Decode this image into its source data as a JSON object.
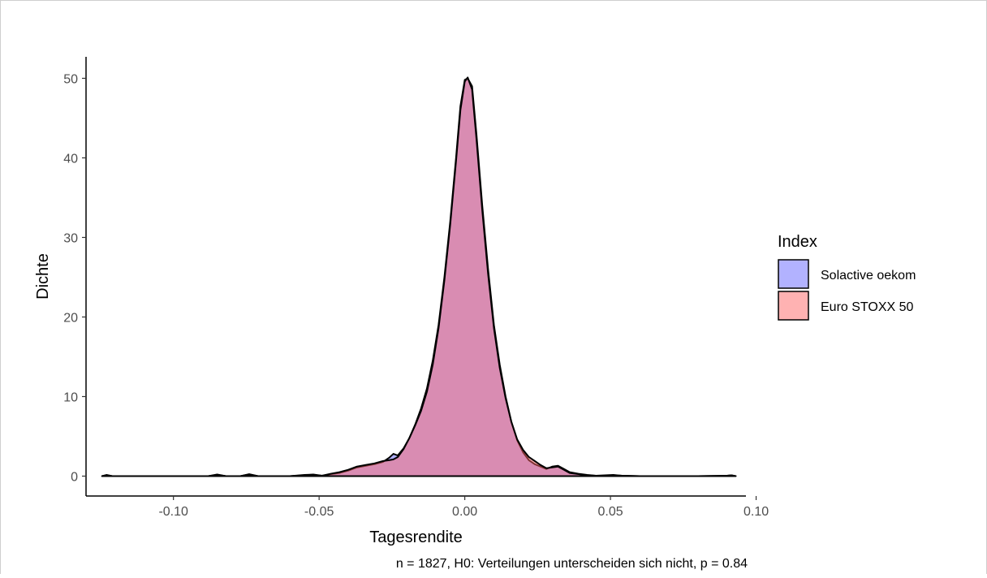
{
  "chart_data": {
    "type": "area",
    "subtype": "density",
    "xlabel": "Tagesrendite",
    "ylabel": "Dichte",
    "caption": "n = 1827, H0: Verteilungen unterscheiden sich nicht, p = 0.84",
    "xlim": [
      -0.13,
      0.0965
    ],
    "ylim": [
      -2.5,
      52.7
    ],
    "x_ticks": [
      -0.1,
      -0.05,
      0.0,
      0.05,
      0.1
    ],
    "x_tick_labels": [
      "-0.10",
      "-0.05",
      "0.00",
      "0.05",
      "0.10"
    ],
    "y_ticks": [
      0,
      10,
      20,
      30,
      40,
      50
    ],
    "y_tick_labels": [
      "0",
      "10",
      "20",
      "30",
      "40",
      "50"
    ],
    "grid": false,
    "legend": {
      "title": "Index",
      "placement": "right"
    },
    "series": [
      {
        "name": "Solactive oekom",
        "fill_color": "#6666ff",
        "fill_opacity": 0.5,
        "points": [
          [
            -0.1245,
            0.0
          ],
          [
            -0.123,
            0.15
          ],
          [
            -0.121,
            0.0
          ],
          [
            -0.1,
            0.0
          ],
          [
            -0.088,
            0.0
          ],
          [
            -0.085,
            0.2
          ],
          [
            -0.082,
            0.0
          ],
          [
            -0.077,
            0.0
          ],
          [
            -0.074,
            0.25
          ],
          [
            -0.071,
            0.0
          ],
          [
            -0.06,
            0.0
          ],
          [
            -0.055,
            0.15
          ],
          [
            -0.052,
            0.2
          ],
          [
            -0.049,
            0.05
          ],
          [
            -0.046,
            0.25
          ],
          [
            -0.043,
            0.4
          ],
          [
            -0.04,
            0.7
          ],
          [
            -0.037,
            1.1
          ],
          [
            -0.034,
            1.3
          ],
          [
            -0.031,
            1.5
          ],
          [
            -0.028,
            1.8
          ],
          [
            -0.026,
            2.3
          ],
          [
            -0.0245,
            2.8
          ],
          [
            -0.023,
            2.6
          ],
          [
            -0.021,
            3.5
          ],
          [
            -0.019,
            4.8
          ],
          [
            -0.017,
            6.5
          ],
          [
            -0.015,
            8.5
          ],
          [
            -0.013,
            11.0
          ],
          [
            -0.011,
            14.5
          ],
          [
            -0.009,
            19.0
          ],
          [
            -0.007,
            25.0
          ],
          [
            -0.005,
            32.0
          ],
          [
            -0.003,
            40.0
          ],
          [
            -0.0015,
            46.5
          ],
          [
            0.0,
            49.8
          ],
          [
            0.001,
            50.0
          ],
          [
            0.0025,
            49.0
          ],
          [
            0.004,
            43.0
          ],
          [
            0.006,
            34.0
          ],
          [
            0.008,
            26.0
          ],
          [
            0.01,
            19.0
          ],
          [
            0.012,
            14.0
          ],
          [
            0.014,
            10.0
          ],
          [
            0.016,
            6.8
          ],
          [
            0.018,
            4.5
          ],
          [
            0.02,
            3.0
          ],
          [
            0.022,
            2.0
          ],
          [
            0.024,
            1.5
          ],
          [
            0.026,
            1.2
          ],
          [
            0.028,
            0.9
          ],
          [
            0.03,
            1.2
          ],
          [
            0.032,
            1.3
          ],
          [
            0.034,
            0.9
          ],
          [
            0.036,
            0.5
          ],
          [
            0.039,
            0.3
          ],
          [
            0.042,
            0.15
          ],
          [
            0.045,
            0.05
          ],
          [
            0.048,
            0.1
          ],
          [
            0.051,
            0.15
          ],
          [
            0.054,
            0.05
          ],
          [
            0.06,
            0.0
          ],
          [
            0.07,
            0.0
          ],
          [
            0.08,
            0.0
          ],
          [
            0.09,
            0.05
          ],
          [
            0.0915,
            0.1
          ],
          [
            0.093,
            0.0
          ]
        ]
      },
      {
        "name": "Euro STOXX 50",
        "fill_color": "#ff6666",
        "fill_opacity": 0.5,
        "points": [
          [
            -0.1245,
            0.0
          ],
          [
            -0.123,
            0.12
          ],
          [
            -0.121,
            0.0
          ],
          [
            -0.1,
            0.0
          ],
          [
            -0.088,
            0.0
          ],
          [
            -0.085,
            0.15
          ],
          [
            -0.082,
            0.0
          ],
          [
            -0.077,
            0.0
          ],
          [
            -0.074,
            0.2
          ],
          [
            -0.071,
            0.0
          ],
          [
            -0.06,
            0.0
          ],
          [
            -0.055,
            0.1
          ],
          [
            -0.052,
            0.15
          ],
          [
            -0.049,
            0.05
          ],
          [
            -0.046,
            0.3
          ],
          [
            -0.043,
            0.5
          ],
          [
            -0.04,
            0.8
          ],
          [
            -0.037,
            1.2
          ],
          [
            -0.034,
            1.4
          ],
          [
            -0.031,
            1.6
          ],
          [
            -0.028,
            1.9
          ],
          [
            -0.026,
            2.0
          ],
          [
            -0.0245,
            2.1
          ],
          [
            -0.023,
            2.4
          ],
          [
            -0.021,
            3.4
          ],
          [
            -0.019,
            4.8
          ],
          [
            -0.017,
            6.4
          ],
          [
            -0.015,
            8.2
          ],
          [
            -0.013,
            10.6
          ],
          [
            -0.011,
            14.0
          ],
          [
            -0.009,
            18.6
          ],
          [
            -0.007,
            24.6
          ],
          [
            -0.005,
            31.6
          ],
          [
            -0.003,
            39.6
          ],
          [
            -0.0015,
            46.0
          ],
          [
            0.0,
            49.6
          ],
          [
            0.001,
            50.1
          ],
          [
            0.0025,
            48.6
          ],
          [
            0.004,
            42.4
          ],
          [
            0.006,
            33.4
          ],
          [
            0.008,
            25.4
          ],
          [
            0.01,
            18.6
          ],
          [
            0.012,
            13.6
          ],
          [
            0.014,
            9.8
          ],
          [
            0.016,
            6.8
          ],
          [
            0.018,
            4.6
          ],
          [
            0.02,
            3.3
          ],
          [
            0.022,
            2.4
          ],
          [
            0.024,
            1.9
          ],
          [
            0.026,
            1.4
          ],
          [
            0.028,
            1.0
          ],
          [
            0.03,
            1.1
          ],
          [
            0.032,
            1.2
          ],
          [
            0.034,
            0.8
          ],
          [
            0.036,
            0.4
          ],
          [
            0.039,
            0.25
          ],
          [
            0.042,
            0.1
          ],
          [
            0.045,
            0.05
          ],
          [
            0.048,
            0.05
          ],
          [
            0.051,
            0.1
          ],
          [
            0.054,
            0.05
          ],
          [
            0.06,
            0.0
          ],
          [
            0.07,
            0.0
          ],
          [
            0.08,
            0.0
          ],
          [
            0.09,
            0.05
          ],
          [
            0.0915,
            0.1
          ],
          [
            0.093,
            0.0
          ]
        ]
      }
    ]
  }
}
